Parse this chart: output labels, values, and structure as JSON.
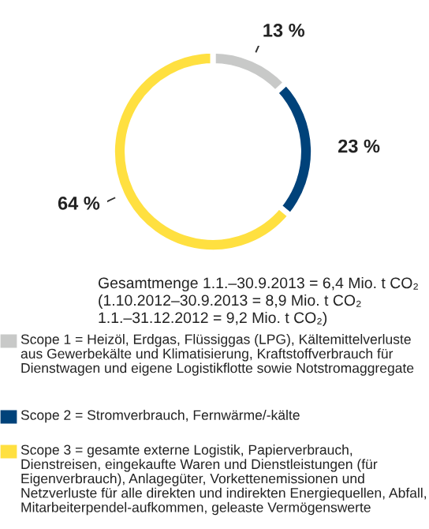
{
  "chart_data": {
    "type": "donut",
    "title": "Gesamtmenge 1.1.–30.9.2013 = 6,4 Mio. t CO₂",
    "annotations": [
      "(1.10.2012–30.9.2013 = 8,9 Mio. t CO₂",
      "1.1.–31.12.2012 = 9,2 Mio. t CO₂)"
    ],
    "categories": [
      "Scope 1 = Heizöl, Erdgas, Flüssiggas (LPG), Kältemittelverluste aus Gewerbekälte und Klimatisierung, Kraftstoffverbrauch für Dienstwagen und eigene Logistikflotte sowie Notstromaggregate",
      "Scope 2 = Stromverbrauch, Fernwärme/-kälte",
      "Scope 3 = gesamte externe Logistik, Papierverbrauch, Dienstreisen, eingekaufte Waren und Dienstleistungen (für Eigenverbrauch), Anlagegüter, Vorkettenemissionen und Netzverluste für alle direkten und indirekten Energiequellen, Abfall, Mitarbeiterpendel-aufkommen, geleaste Vermögenswerte"
    ],
    "values": [
      13,
      23,
      64
    ],
    "colors": [
      "#c8c9c8",
      "#00427a",
      "#ffe040"
    ],
    "value_labels": [
      "13 %",
      "23 %",
      "64 %"
    ],
    "legend": "bottom"
  }
}
